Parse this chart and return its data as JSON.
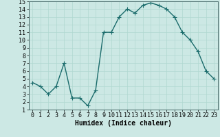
{
  "x": [
    0,
    1,
    2,
    3,
    4,
    5,
    6,
    7,
    8,
    9,
    10,
    11,
    12,
    13,
    14,
    15,
    16,
    17,
    18,
    19,
    20,
    21,
    22,
    23
  ],
  "y": [
    4.5,
    4.0,
    3.0,
    4.0,
    7.0,
    2.5,
    2.5,
    1.5,
    3.5,
    11.0,
    11.0,
    13.0,
    14.0,
    13.5,
    14.5,
    14.8,
    14.5,
    14.0,
    13.0,
    11.0,
    10.0,
    8.5,
    6.0,
    5.0
  ],
  "line_color": "#1a6b6b",
  "marker": "+",
  "marker_size": 4,
  "background_color": "#cce8e4",
  "grid_color": "#b0d8d0",
  "xlabel": "Humidex (Indice chaleur)",
  "xlabel_fontsize": 7,
  "xlim": [
    -0.5,
    23.5
  ],
  "ylim": [
    1,
    15
  ],
  "yticks": [
    1,
    2,
    3,
    4,
    5,
    6,
    7,
    8,
    9,
    10,
    11,
    12,
    13,
    14,
    15
  ],
  "xticks": [
    0,
    1,
    2,
    3,
    4,
    5,
    6,
    7,
    8,
    9,
    10,
    11,
    12,
    13,
    14,
    15,
    16,
    17,
    18,
    19,
    20,
    21,
    22,
    23
  ],
  "tick_fontsize": 6,
  "line_width": 1.0,
  "marker_edge_width": 0.8
}
